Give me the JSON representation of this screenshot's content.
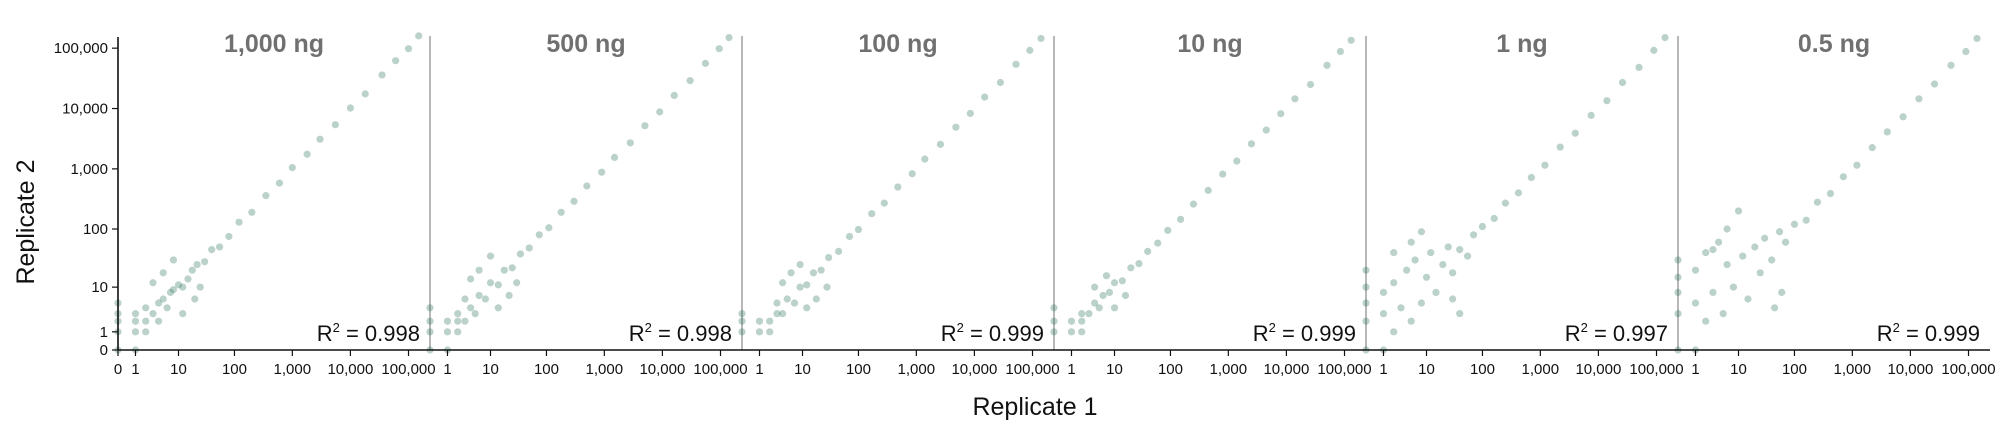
{
  "chart_data": {
    "type": "scatter",
    "xlabel": "Replicate 1",
    "ylabel": "Replicate 2",
    "x_scale": "pseudo-log (log10 of value+1)",
    "y_scale": "pseudo-log (log10 of value+1)",
    "xlim": [
      0,
      200000
    ],
    "ylim": [
      0,
      200000
    ],
    "grid": false,
    "point_color": "#1f6b4f",
    "point_opacity": 0.3,
    "y_ticks": [
      "0",
      "1",
      "10",
      "100",
      "1,000",
      "10,000",
      "100,000"
    ],
    "y_tick_values": [
      0,
      1,
      10,
      100,
      1000,
      10000,
      100000
    ],
    "x_ticks_first_panel": [
      "0",
      "1",
      "10",
      "100",
      "1,000",
      "10,000",
      "100,000"
    ],
    "x_ticks_first_panel_values": [
      0,
      1,
      10,
      100,
      1000,
      10000,
      100000
    ],
    "x_ticks_other_panels": [
      "1",
      "10",
      "100",
      "1,000",
      "10,000",
      "100,000"
    ],
    "x_ticks_other_panels_values": [
      1,
      10,
      100,
      1000,
      10000,
      100000
    ],
    "panels": [
      {
        "title": "1,000 ng",
        "r2_label": "R",
        "r2_sup": "2",
        "r2_value": " = 0.998",
        "points": [
          [
            0,
            0
          ],
          [
            0,
            1
          ],
          [
            0,
            2
          ],
          [
            0,
            3
          ],
          [
            0,
            5
          ],
          [
            1,
            0
          ],
          [
            1,
            1
          ],
          [
            1,
            2
          ],
          [
            1,
            3
          ],
          [
            2,
            1
          ],
          [
            2,
            2
          ],
          [
            3,
            3
          ],
          [
            2,
            4
          ],
          [
            4,
            2
          ],
          [
            4,
            5
          ],
          [
            5,
            6
          ],
          [
            6,
            4
          ],
          [
            7,
            8
          ],
          [
            8,
            9
          ],
          [
            10,
            11
          ],
          [
            12,
            10
          ],
          [
            15,
            14
          ],
          [
            18,
            20
          ],
          [
            22,
            25
          ],
          [
            30,
            28
          ],
          [
            40,
            45
          ],
          [
            55,
            50
          ],
          [
            80,
            75
          ],
          [
            120,
            130
          ],
          [
            200,
            190
          ],
          [
            350,
            360
          ],
          [
            600,
            580
          ],
          [
            1000,
            1050
          ],
          [
            1800,
            1750
          ],
          [
            3000,
            3100
          ],
          [
            5500,
            5400
          ],
          [
            10000,
            10200
          ],
          [
            18000,
            17500
          ],
          [
            35000,
            36000
          ],
          [
            60000,
            62000
          ],
          [
            100000,
            98000
          ],
          [
            150000,
            160000
          ],
          [
            3,
            12
          ],
          [
            12,
            3
          ],
          [
            5,
            18
          ],
          [
            20,
            6
          ],
          [
            8,
            30
          ],
          [
            25,
            10
          ]
        ]
      },
      {
        "title": "500 ng",
        "r2_label": "R",
        "r2_sup": "2",
        "r2_value": " = 0.998",
        "points": [
          [
            0,
            0
          ],
          [
            0,
            1
          ],
          [
            0,
            2
          ],
          [
            0,
            4
          ],
          [
            1,
            0
          ],
          [
            1,
            1
          ],
          [
            1,
            2
          ],
          [
            2,
            1
          ],
          [
            2,
            2
          ],
          [
            2,
            3
          ],
          [
            3,
            2
          ],
          [
            4,
            4
          ],
          [
            5,
            3
          ],
          [
            3,
            6
          ],
          [
            6,
            7
          ],
          [
            8,
            6
          ],
          [
            10,
            12
          ],
          [
            14,
            11
          ],
          [
            18,
            20
          ],
          [
            25,
            22
          ],
          [
            35,
            38
          ],
          [
            50,
            48
          ],
          [
            75,
            80
          ],
          [
            110,
            105
          ],
          [
            180,
            190
          ],
          [
            300,
            290
          ],
          [
            500,
            520
          ],
          [
            900,
            880
          ],
          [
            1500,
            1550
          ],
          [
            2800,
            2700
          ],
          [
            5000,
            5200
          ],
          [
            9000,
            8800
          ],
          [
            16000,
            16500
          ],
          [
            30000,
            29000
          ],
          [
            55000,
            56000
          ],
          [
            95000,
            98000
          ],
          [
            140000,
            150000
          ],
          [
            4,
            14
          ],
          [
            14,
            4
          ],
          [
            6,
            20
          ],
          [
            22,
            7
          ],
          [
            10,
            35
          ],
          [
            30,
            12
          ]
        ]
      },
      {
        "title": "100 ng",
        "r2_label": "R",
        "r2_sup": "2",
        "r2_value": " = 0.999",
        "points": [
          [
            0,
            1
          ],
          [
            0,
            2
          ],
          [
            0,
            3
          ],
          [
            1,
            1
          ],
          [
            1,
            2
          ],
          [
            2,
            1
          ],
          [
            2,
            2
          ],
          [
            3,
            3
          ],
          [
            4,
            3
          ],
          [
            3,
            5
          ],
          [
            5,
            6
          ],
          [
            7,
            5
          ],
          [
            9,
            10
          ],
          [
            12,
            11
          ],
          [
            16,
            18
          ],
          [
            22,
            20
          ],
          [
            30,
            33
          ],
          [
            45,
            42
          ],
          [
            70,
            75
          ],
          [
            100,
            98
          ],
          [
            170,
            180
          ],
          [
            280,
            270
          ],
          [
            480,
            500
          ],
          [
            850,
            830
          ],
          [
            1400,
            1450
          ],
          [
            2600,
            2550
          ],
          [
            4800,
            4900
          ],
          [
            8500,
            8300
          ],
          [
            15000,
            15500
          ],
          [
            28000,
            27000
          ],
          [
            52000,
            54000
          ],
          [
            90000,
            92000
          ],
          [
            140000,
            145000
          ],
          [
            4,
            12
          ],
          [
            12,
            4
          ],
          [
            6,
            18
          ],
          [
            18,
            6
          ],
          [
            9,
            25
          ],
          [
            28,
            10
          ]
        ]
      },
      {
        "title": "10 ng",
        "r2_label": "R",
        "r2_sup": "2",
        "r2_value": " = 0.999",
        "points": [
          [
            0,
            1
          ],
          [
            0,
            2
          ],
          [
            0,
            4
          ],
          [
            1,
            1
          ],
          [
            1,
            2
          ],
          [
            2,
            1
          ],
          [
            2,
            2
          ],
          [
            2,
            3
          ],
          [
            3,
            3
          ],
          [
            4,
            5
          ],
          [
            5,
            4
          ],
          [
            6,
            7
          ],
          [
            8,
            8
          ],
          [
            10,
            12
          ],
          [
            14,
            13
          ],
          [
            20,
            22
          ],
          [
            28,
            26
          ],
          [
            40,
            42
          ],
          [
            60,
            58
          ],
          [
            90,
            95
          ],
          [
            150,
            145
          ],
          [
            250,
            260
          ],
          [
            450,
            440
          ],
          [
            800,
            820
          ],
          [
            1400,
            1350
          ],
          [
            2500,
            2600
          ],
          [
            4500,
            4400
          ],
          [
            8000,
            8200
          ],
          [
            14000,
            14500
          ],
          [
            26000,
            25000
          ],
          [
            50000,
            52000
          ],
          [
            85000,
            88000
          ],
          [
            130000,
            135000
          ],
          [
            4,
            10
          ],
          [
            10,
            4
          ],
          [
            7,
            16
          ],
          [
            16,
            7
          ]
        ]
      },
      {
        "title": "1 ng",
        "r2_label": "R",
        "r2_sup": "2",
        "r2_value": " = 0.997",
        "points": [
          [
            0,
            0
          ],
          [
            0,
            2
          ],
          [
            0,
            5
          ],
          [
            0,
            10
          ],
          [
            0,
            20
          ],
          [
            1,
            0
          ],
          [
            1,
            3
          ],
          [
            1,
            8
          ],
          [
            2,
            1
          ],
          [
            2,
            12
          ],
          [
            3,
            4
          ],
          [
            4,
            20
          ],
          [
            5,
            2
          ],
          [
            6,
            30
          ],
          [
            8,
            5
          ],
          [
            10,
            15
          ],
          [
            12,
            40
          ],
          [
            15,
            8
          ],
          [
            20,
            25
          ],
          [
            25,
            50
          ],
          [
            30,
            18
          ],
          [
            40,
            45
          ],
          [
            55,
            35
          ],
          [
            70,
            80
          ],
          [
            100,
            110
          ],
          [
            160,
            150
          ],
          [
            250,
            270
          ],
          [
            420,
            400
          ],
          [
            700,
            720
          ],
          [
            1200,
            1150
          ],
          [
            2200,
            2300
          ],
          [
            4000,
            3900
          ],
          [
            7500,
            7700
          ],
          [
            14000,
            13500
          ],
          [
            26000,
            27000
          ],
          [
            50000,
            48000
          ],
          [
            90000,
            92000
          ],
          [
            140000,
            150000
          ],
          [
            2,
            40
          ],
          [
            40,
            3
          ],
          [
            5,
            60
          ],
          [
            30,
            6
          ],
          [
            8,
            90
          ]
        ]
      },
      {
        "title": "0.5 ng",
        "r2_label": "R",
        "r2_sup": "2",
        "r2_value": " = 0.999",
        "points": [
          [
            0,
            0
          ],
          [
            0,
            3
          ],
          [
            0,
            8
          ],
          [
            0,
            15
          ],
          [
            0,
            30
          ],
          [
            1,
            0
          ],
          [
            1,
            5
          ],
          [
            1,
            20
          ],
          [
            2,
            2
          ],
          [
            2,
            40
          ],
          [
            3,
            8
          ],
          [
            4,
            60
          ],
          [
            5,
            3
          ],
          [
            6,
            25
          ],
          [
            8,
            10
          ],
          [
            10,
            200
          ],
          [
            12,
            35
          ],
          [
            15,
            6
          ],
          [
            20,
            50
          ],
          [
            25,
            18
          ],
          [
            30,
            70
          ],
          [
            40,
            30
          ],
          [
            55,
            90
          ],
          [
            70,
            60
          ],
          [
            100,
            120
          ],
          [
            160,
            140
          ],
          [
            250,
            280
          ],
          [
            420,
            390
          ],
          [
            700,
            740
          ],
          [
            1200,
            1150
          ],
          [
            2200,
            2250
          ],
          [
            4000,
            4100
          ],
          [
            7500,
            7300
          ],
          [
            14000,
            14500
          ],
          [
            26000,
            25500
          ],
          [
            50000,
            52000
          ],
          [
            90000,
            88000
          ],
          [
            140000,
            145000
          ],
          [
            3,
            45
          ],
          [
            45,
            4
          ],
          [
            6,
            100
          ],
          [
            60,
            8
          ]
        ]
      }
    ]
  }
}
